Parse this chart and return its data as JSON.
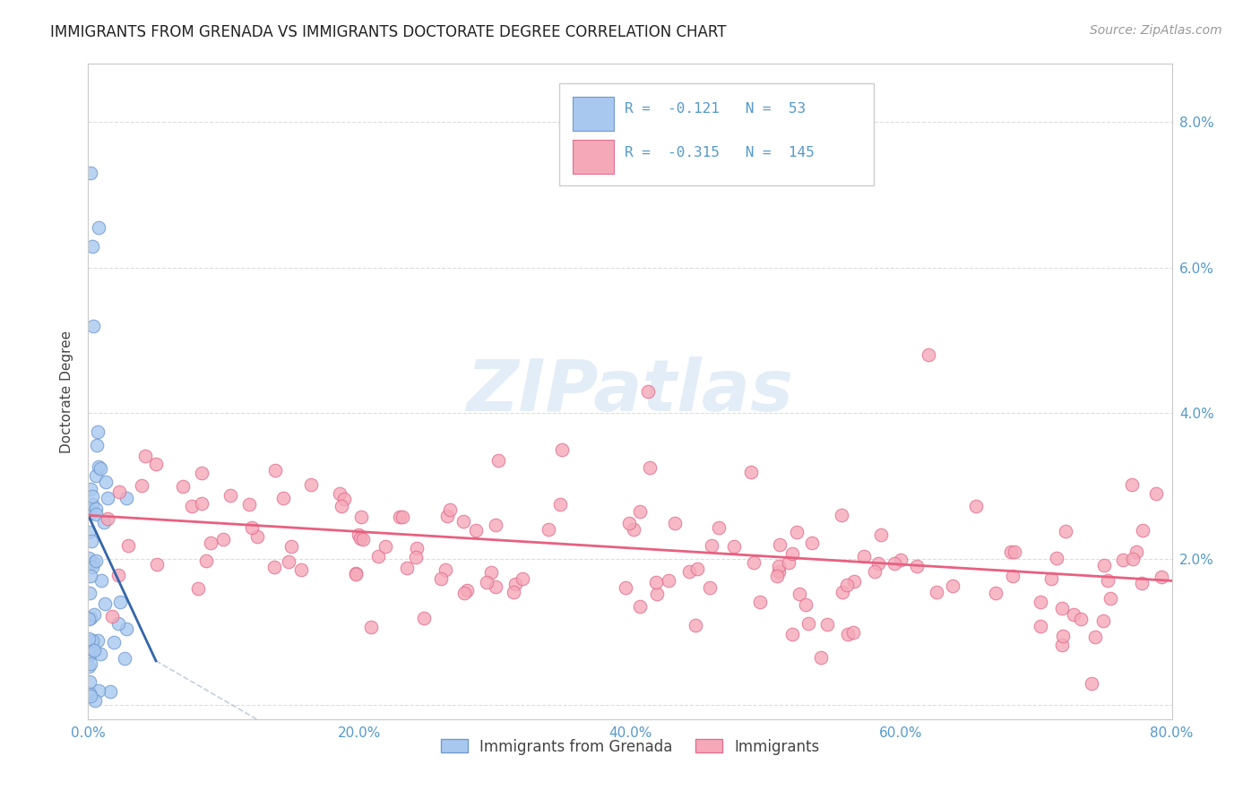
{
  "title": "IMMIGRANTS FROM GRENADA VS IMMIGRANTS DOCTORATE DEGREE CORRELATION CHART",
  "source": "Source: ZipAtlas.com",
  "ylabel_label": "Doctorate Degree",
  "xlim": [
    0.0,
    0.8
  ],
  "ylim": [
    -0.002,
    0.088
  ],
  "blue_R": -0.121,
  "blue_N": 53,
  "pink_R": -0.315,
  "pink_N": 145,
  "legend_labels": [
    "Immigrants from Grenada",
    "Immigrants"
  ],
  "blue_color": "#a8c8f0",
  "pink_color": "#f5a8b8",
  "blue_edge": "#7099cc",
  "pink_edge": "#e07090",
  "blue_line_color": "#3366aa",
  "blue_dash_color": "#aabbcc",
  "pink_line_color": "#e86080",
  "watermark_text": "ZIPatlas",
  "watermark_color": "#c8ddf0",
  "tick_color": "#5599cc",
  "grid_color": "#dddddd",
  "title_color": "#222222",
  "source_color": "#999999",
  "ylabel_color": "#444444",
  "xticks": [
    0.0,
    0.2,
    0.4,
    0.6,
    0.8
  ],
  "yticks": [
    0.0,
    0.02,
    0.04,
    0.06,
    0.08
  ],
  "ytick_labels": [
    "",
    "2.0%",
    "4.0%",
    "6.0%",
    "8.0%"
  ],
  "xtick_labels": [
    "0.0%",
    "20.0%",
    "40.0%",
    "60.0%",
    "80.0%"
  ]
}
